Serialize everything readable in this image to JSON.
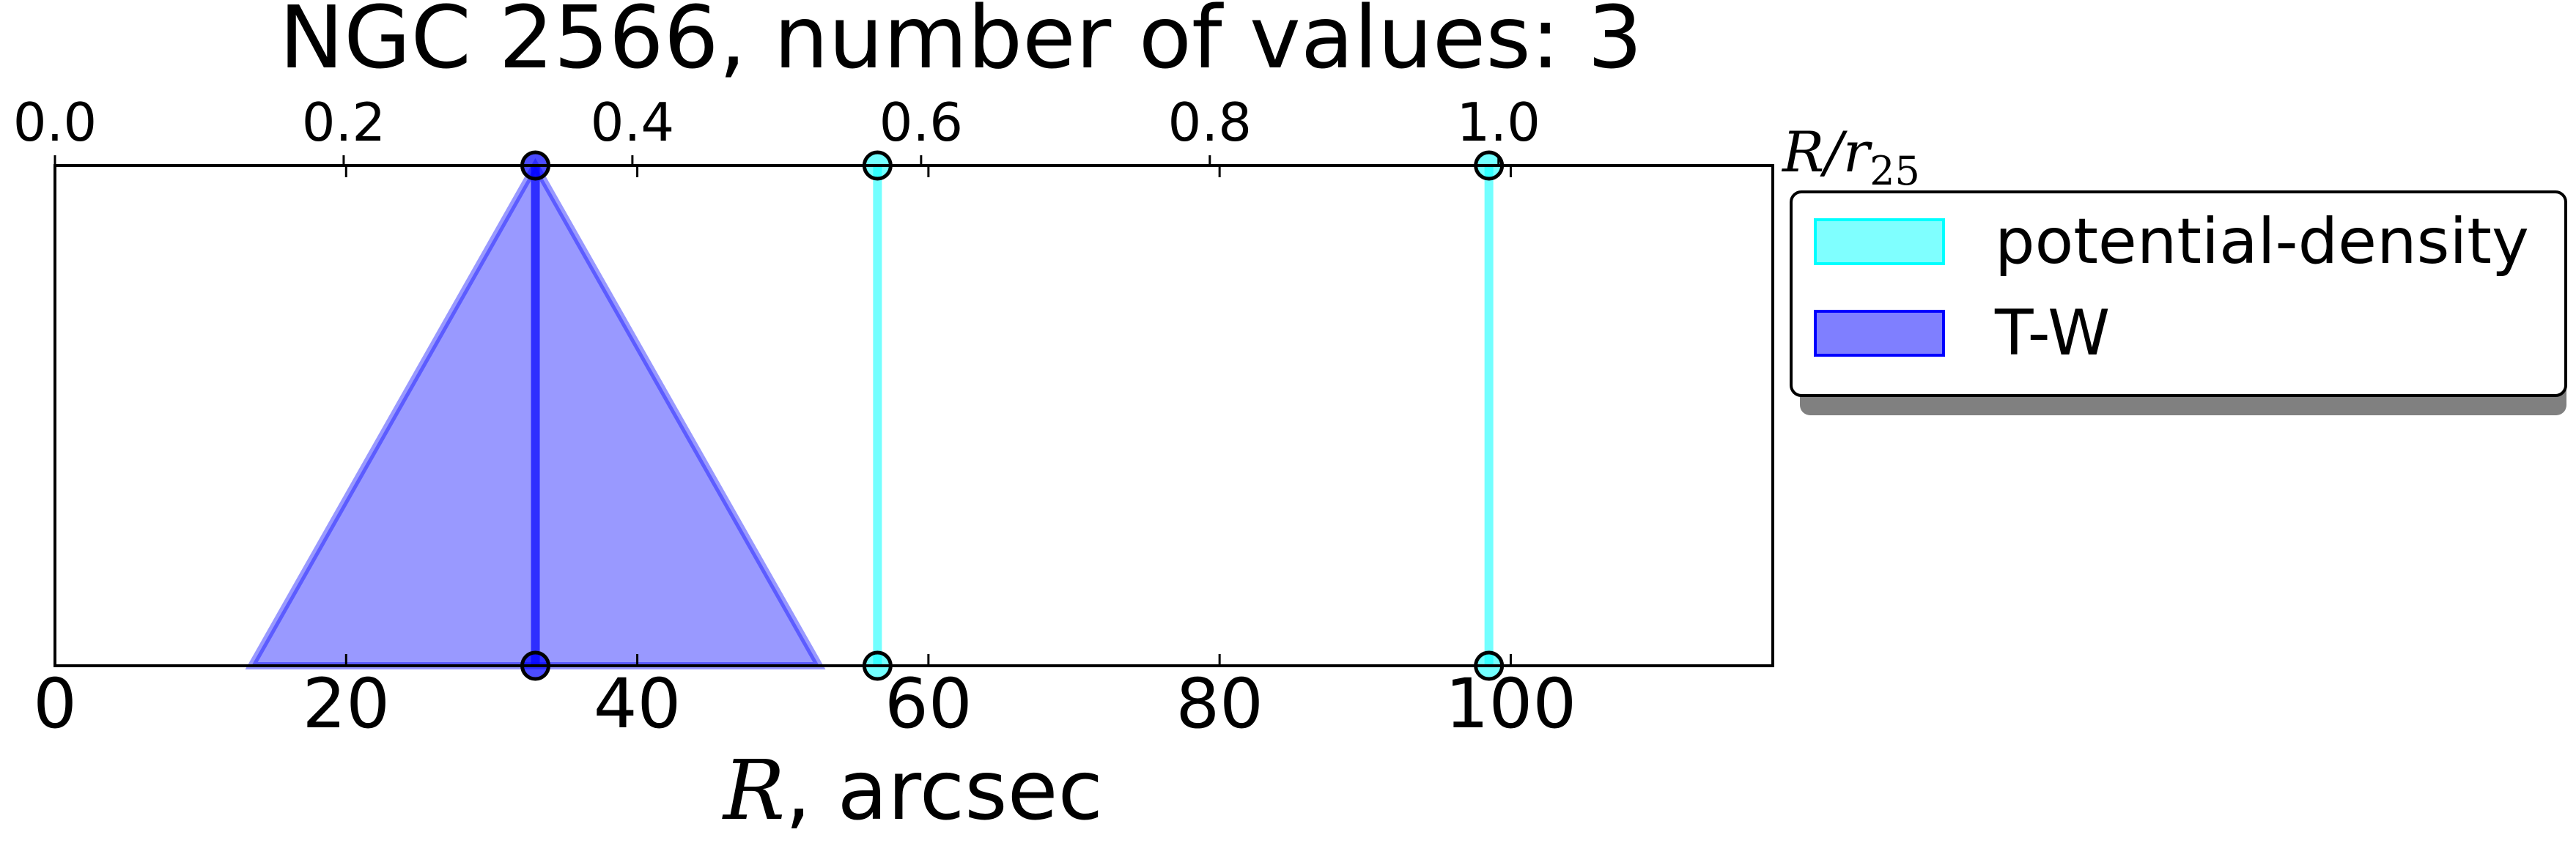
{
  "chart_data": {
    "type": "line",
    "title": "NGC 2566, number of values: 3",
    "xlabel": {
      "italic": "R",
      "rest": ", arcsec"
    },
    "top_xlabel": {
      "base": "R/r",
      "sub": "25"
    },
    "xlim": [
      0,
      118
    ],
    "xticks": [
      0,
      20,
      40,
      60,
      80,
      100
    ],
    "xtick_labels": [
      "0",
      "20",
      "40",
      "60",
      "80",
      "100"
    ],
    "top_xlim": [
      0,
      1.19
    ],
    "top_xticks": [
      0.0,
      0.2,
      0.4,
      0.6,
      0.8,
      1.0
    ],
    "top_xtick_labels": [
      "0.0",
      "0.2",
      "0.4",
      "0.6",
      "0.8",
      "1.0"
    ],
    "grid": false,
    "legend_position": "outside-right-top",
    "series": [
      {
        "name": "potential-density",
        "color": "#00ffff",
        "values": [
          56.5,
          98.5
        ]
      },
      {
        "name": "T-W",
        "color": "#0000ff",
        "values": [
          33.0
        ],
        "range": [
          13.5,
          52.5
        ]
      }
    ]
  }
}
